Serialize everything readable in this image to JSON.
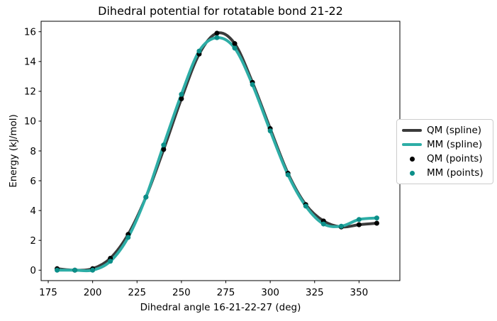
{
  "figure": {
    "title": "Dihedral potential for rotatable bond 21-22",
    "xlabel": "Dihedral angle 16-21-22-27 (deg)",
    "ylabel": "Energy (kJ/mol)",
    "background": "#ffffff",
    "axis_color": "#000000",
    "legend_border_color": "#cccccc"
  },
  "chart_data": {
    "type": "line",
    "title": "Dihedral potential for rotatable bond 21-22",
    "xlabel": "Dihedral angle 16-21-22-27 (deg)",
    "ylabel": "Energy (kJ/mol)",
    "x": [
      180,
      190,
      200,
      210,
      220,
      230,
      240,
      250,
      260,
      270,
      280,
      290,
      300,
      310,
      320,
      330,
      340,
      350,
      360
    ],
    "series": [
      {
        "name": "QM (spline)",
        "style": "spline",
        "color": "#3a3a3a",
        "linewidth": 4,
        "values": [
          0.1,
          0.0,
          0.1,
          0.8,
          2.4,
          4.9,
          8.1,
          11.5,
          14.5,
          15.9,
          15.2,
          12.6,
          9.5,
          6.5,
          4.4,
          3.3,
          2.9,
          3.05,
          3.15
        ]
      },
      {
        "name": "MM (spline)",
        "style": "spline",
        "color": "#2dada6",
        "linewidth": 4,
        "values": [
          0.0,
          0.0,
          0.0,
          0.6,
          2.2,
          4.9,
          8.4,
          11.8,
          14.7,
          15.6,
          14.9,
          12.45,
          9.35,
          6.4,
          4.3,
          3.1,
          2.95,
          3.4,
          3.5
        ]
      },
      {
        "name": "QM (points)",
        "style": "points",
        "color": "#000000",
        "markersize": 7,
        "values": [
          0.1,
          0.0,
          0.1,
          0.8,
          2.4,
          4.9,
          8.1,
          11.5,
          14.5,
          15.9,
          15.2,
          12.6,
          9.5,
          6.5,
          4.4,
          3.3,
          2.9,
          3.05,
          3.15
        ]
      },
      {
        "name": "MM (points)",
        "style": "points",
        "color": "#0c8f89",
        "markersize": 7,
        "values": [
          0.0,
          0.0,
          0.0,
          0.6,
          2.2,
          4.9,
          8.4,
          11.8,
          14.7,
          15.6,
          14.9,
          12.45,
          9.35,
          6.4,
          4.3,
          3.1,
          2.95,
          3.4,
          3.5
        ]
      }
    ],
    "xticks": [
      175,
      200,
      225,
      250,
      275,
      300,
      325,
      350
    ],
    "yticks": [
      0,
      2,
      4,
      6,
      8,
      10,
      12,
      14,
      16
    ],
    "xlim": [
      171,
      373
    ],
    "ylim": [
      -0.7,
      16.7
    ],
    "grid": false,
    "legend_position": "center-right-outside"
  }
}
